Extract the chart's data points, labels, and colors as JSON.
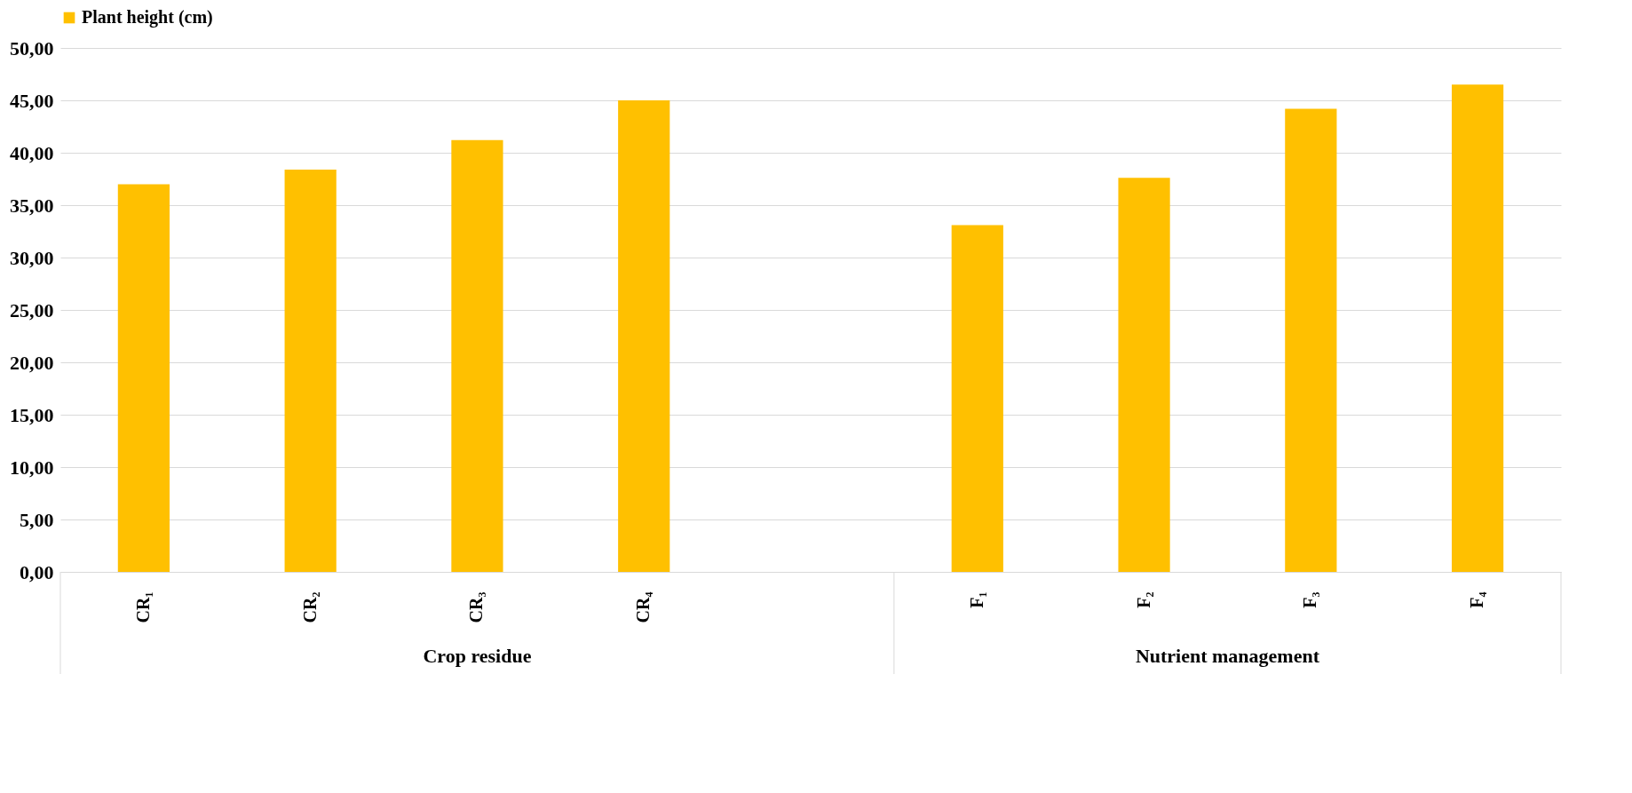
{
  "chart_data": {
    "type": "bar",
    "categories": [
      "CR₁",
      "CR₂",
      "CR₃",
      "CR₄",
      null,
      "F₁",
      "F₂",
      "F₃",
      "F₄"
    ],
    "series": [
      {
        "name": "Plant height (cm)",
        "color": "#ffc000",
        "values": [
          37.0,
          38.4,
          41.2,
          45.0,
          null,
          33.1,
          37.6,
          44.2,
          46.5
        ]
      }
    ],
    "ylim": [
      0,
      50
    ],
    "yticks": [
      {
        "value": 0,
        "label": "0,00"
      },
      {
        "value": 5,
        "label": "5,00"
      },
      {
        "value": 10,
        "label": "10,00"
      },
      {
        "value": 15,
        "label": "15,00"
      },
      {
        "value": 20,
        "label": "20,00"
      },
      {
        "value": 25,
        "label": "25,00"
      },
      {
        "value": 30,
        "label": "30,00"
      },
      {
        "value": 35,
        "label": "35,00"
      },
      {
        "value": 40,
        "label": "40,00"
      },
      {
        "value": 45,
        "label": "45,00"
      },
      {
        "value": 50,
        "label": "50,00"
      }
    ],
    "grid": "y",
    "legend": "top",
    "annotations": [
      "Crop residue",
      "Nutrient management"
    ]
  }
}
